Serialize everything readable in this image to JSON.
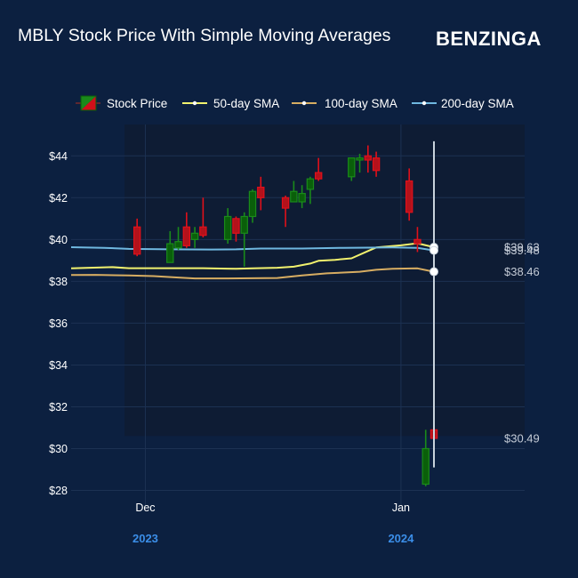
{
  "header": {
    "title": "MBLY Stock Price With Simple Moving Averages",
    "brand": "BENZINGA"
  },
  "colors": {
    "background": "#0c2040",
    "plot_shade": "#0f1c33",
    "grid": "#1c3152",
    "up": "#1a8a1a",
    "down": "#e0101a",
    "sma50": "#f2f26e",
    "sma100": "#d7ad62",
    "sma200": "#6fb8e0",
    "year_label": "#3b8ee8",
    "crosshair": "#c8d2dc"
  },
  "chart_data": {
    "type": "candlestick",
    "title": "MBLY Stock Price With Simple Moving Averages",
    "yticks": [
      "$28",
      "$30",
      "$32",
      "$34",
      "$36",
      "$38",
      "$40",
      "$42",
      "$44"
    ],
    "xticks": [
      {
        "date": "2023-12-01",
        "label": "Dec",
        "year": "2023"
      },
      {
        "date": "2024-01-01",
        "label": "Jan",
        "year": "2024"
      }
    ],
    "ylim": [
      27.3,
      45.5
    ],
    "xlim": [
      "2023-11-22",
      "2024-01-16"
    ],
    "legend": [
      "Stock Price",
      "50-day SMA",
      "100-day SMA",
      "200-day SMA"
    ],
    "legend_position": "top",
    "grid": true,
    "candles": [
      {
        "date": "2023-11-30",
        "open": 40.6,
        "high": 41.0,
        "low": 39.2,
        "close": 39.3
      },
      {
        "date": "2023-12-04",
        "open": 38.9,
        "high": 40.4,
        "low": 38.9,
        "close": 39.8
      },
      {
        "date": "2023-12-05",
        "open": 39.6,
        "high": 40.6,
        "low": 39.5,
        "close": 39.9
      },
      {
        "date": "2023-12-06",
        "open": 40.6,
        "high": 41.3,
        "low": 39.6,
        "close": 39.7
      },
      {
        "date": "2023-12-07",
        "open": 40.0,
        "high": 40.6,
        "low": 39.6,
        "close": 40.3
      },
      {
        "date": "2023-12-08",
        "open": 40.6,
        "high": 42.0,
        "low": 40.1,
        "close": 40.2
      },
      {
        "date": "2023-12-11",
        "open": 40.0,
        "high": 41.5,
        "low": 39.8,
        "close": 41.1
      },
      {
        "date": "2023-12-12",
        "open": 41.0,
        "high": 41.1,
        "low": 39.9,
        "close": 40.3
      },
      {
        "date": "2023-12-13",
        "open": 40.3,
        "high": 41.3,
        "low": 38.7,
        "close": 41.1
      },
      {
        "date": "2023-12-14",
        "open": 41.1,
        "high": 42.4,
        "low": 40.8,
        "close": 42.3
      },
      {
        "date": "2023-12-15",
        "open": 42.5,
        "high": 43.0,
        "low": 41.4,
        "close": 42.0
      },
      {
        "date": "2023-12-18",
        "open": 42.0,
        "high": 42.1,
        "low": 40.6,
        "close": 41.5
      },
      {
        "date": "2023-12-19",
        "open": 41.8,
        "high": 42.8,
        "low": 41.8,
        "close": 42.3
      },
      {
        "date": "2023-12-20",
        "open": 41.8,
        "high": 42.6,
        "low": 41.5,
        "close": 42.2
      },
      {
        "date": "2023-12-21",
        "open": 42.4,
        "high": 43.0,
        "low": 41.7,
        "close": 42.9
      },
      {
        "date": "2023-12-22",
        "open": 43.2,
        "high": 43.9,
        "low": 42.8,
        "close": 42.9
      },
      {
        "date": "2023-12-26",
        "open": 43.0,
        "high": 43.9,
        "low": 42.8,
        "close": 43.9
      },
      {
        "date": "2023-12-27",
        "open": 43.8,
        "high": 44.1,
        "low": 43.2,
        "close": 43.9
      },
      {
        "date": "2023-12-28",
        "open": 44.0,
        "high": 44.5,
        "low": 43.2,
        "close": 43.8
      },
      {
        "date": "2023-12-29",
        "open": 43.9,
        "high": 44.2,
        "low": 43.0,
        "close": 43.3
      },
      {
        "date": "2024-01-02",
        "open": 42.8,
        "high": 43.4,
        "low": 40.9,
        "close": 41.3
      },
      {
        "date": "2024-01-03",
        "open": 40.0,
        "high": 40.6,
        "low": 39.4,
        "close": 39.8
      },
      {
        "date": "2024-01-04",
        "open": 28.3,
        "high": 30.9,
        "low": 28.2,
        "close": 30.0
      },
      {
        "date": "2024-01-05",
        "open": 30.9,
        "high": 31.0,
        "low": 30.2,
        "close": 30.49
      }
    ],
    "series": [
      {
        "name": "50-day SMA",
        "color": "#f2f26e",
        "points": [
          {
            "date": "2023-11-22",
            "value": 38.62
          },
          {
            "date": "2023-11-27",
            "value": 38.68
          },
          {
            "date": "2023-11-29",
            "value": 38.63
          },
          {
            "date": "2023-12-08",
            "value": 38.63
          },
          {
            "date": "2023-12-12",
            "value": 38.6
          },
          {
            "date": "2023-12-14",
            "value": 38.62
          },
          {
            "date": "2023-12-17",
            "value": 38.65
          },
          {
            "date": "2023-12-19",
            "value": 38.7
          },
          {
            "date": "2023-12-21",
            "value": 38.85
          },
          {
            "date": "2023-12-22",
            "value": 38.98
          },
          {
            "date": "2023-12-24",
            "value": 39.03
          },
          {
            "date": "2023-12-26",
            "value": 39.1
          },
          {
            "date": "2023-12-28",
            "value": 39.45
          },
          {
            "date": "2023-12-29",
            "value": 39.62
          },
          {
            "date": "2024-01-01",
            "value": 39.72
          },
          {
            "date": "2024-01-03",
            "value": 39.82
          },
          {
            "date": "2024-01-05",
            "value": 39.63
          }
        ]
      },
      {
        "name": "100-day SMA",
        "color": "#d7ad62",
        "points": [
          {
            "date": "2023-11-22",
            "value": 38.3
          },
          {
            "date": "2023-11-25",
            "value": 38.31
          },
          {
            "date": "2023-11-29",
            "value": 38.28
          },
          {
            "date": "2023-12-02",
            "value": 38.25
          },
          {
            "date": "2023-12-05",
            "value": 38.18
          },
          {
            "date": "2023-12-07",
            "value": 38.14
          },
          {
            "date": "2023-12-11",
            "value": 38.14
          },
          {
            "date": "2023-12-17",
            "value": 38.16
          },
          {
            "date": "2023-12-20",
            "value": 38.28
          },
          {
            "date": "2023-12-23",
            "value": 38.38
          },
          {
            "date": "2023-12-27",
            "value": 38.46
          },
          {
            "date": "2023-12-29",
            "value": 38.55
          },
          {
            "date": "2023-12-31",
            "value": 38.6
          },
          {
            "date": "2024-01-03",
            "value": 38.62
          },
          {
            "date": "2024-01-05",
            "value": 38.46
          }
        ]
      },
      {
        "name": "200-day SMA",
        "color": "#6fb8e0",
        "points": [
          {
            "date": "2023-11-22",
            "value": 39.63
          },
          {
            "date": "2023-11-26",
            "value": 39.6
          },
          {
            "date": "2023-11-29",
            "value": 39.55
          },
          {
            "date": "2023-12-04",
            "value": 39.53
          },
          {
            "date": "2023-12-09",
            "value": 39.52
          },
          {
            "date": "2023-12-12",
            "value": 39.53
          },
          {
            "date": "2023-12-15",
            "value": 39.57
          },
          {
            "date": "2023-12-20",
            "value": 39.57
          },
          {
            "date": "2023-12-25",
            "value": 39.6
          },
          {
            "date": "2023-12-31",
            "value": 39.62
          },
          {
            "date": "2024-01-03",
            "value": 39.6
          },
          {
            "date": "2024-01-05",
            "value": 39.48
          }
        ]
      }
    ],
    "last_values": [
      {
        "label": "$39.63",
        "value": 39.63,
        "series": "50-day SMA"
      },
      {
        "label": "$39.48",
        "value": 39.48,
        "series": "200-day SMA"
      },
      {
        "label": "$38.46",
        "value": 38.46,
        "series": "100-day SMA"
      },
      {
        "label": "$30.49",
        "value": 30.49,
        "series": "Stock Price"
      }
    ],
    "crosshair": {
      "date": "2024-01-05",
      "low": 29.1,
      "high": 44.7
    }
  }
}
